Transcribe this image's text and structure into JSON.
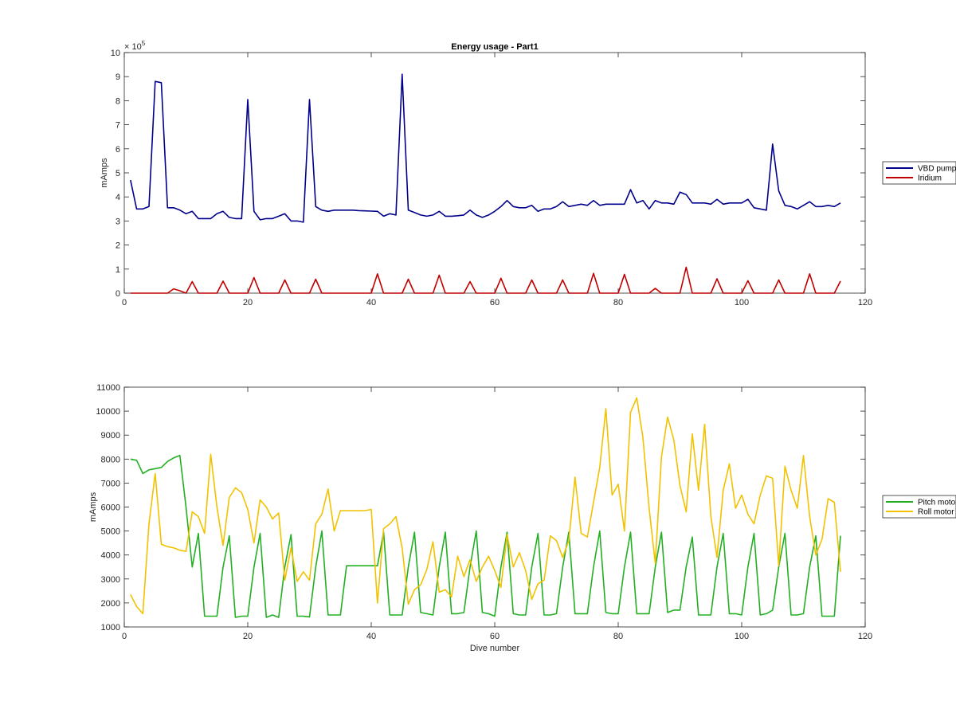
{
  "chart_data": [
    {
      "type": "line",
      "title": "Energy usage - Part1",
      "xlabel": "",
      "ylabel": "mAmps",
      "xlim": [
        0,
        120
      ],
      "ylim": [
        0,
        1000000
      ],
      "xticks": [
        0,
        20,
        40,
        60,
        80,
        100,
        120
      ],
      "yticks": [
        0,
        100000,
        200000,
        300000,
        400000,
        500000,
        600000,
        700000,
        800000,
        900000,
        1000000
      ],
      "ytick_labels": [
        "0",
        "1",
        "2",
        "3",
        "4",
        "5",
        "6",
        "7",
        "8",
        "9",
        "10"
      ],
      "exponent_label": "× 10",
      "exponent_power": "5",
      "grid": false,
      "legend_position": "outside-right",
      "x": [
        1,
        2,
        3,
        4,
        5,
        6,
        7,
        8,
        9,
        10,
        11,
        12,
        13,
        14,
        15,
        16,
        17,
        18,
        19,
        20,
        21,
        22,
        23,
        24,
        25,
        26,
        27,
        28,
        29,
        30,
        31,
        32,
        33,
        34,
        35,
        36,
        37,
        38,
        39,
        40,
        41,
        42,
        43,
        44,
        45,
        46,
        47,
        48,
        49,
        50,
        51,
        52,
        53,
        54,
        55,
        56,
        57,
        58,
        59,
        60,
        61,
        62,
        63,
        64,
        65,
        66,
        67,
        68,
        69,
        70,
        71,
        72,
        73,
        74,
        75,
        76,
        77,
        78,
        79,
        80,
        81,
        82,
        83,
        84,
        85,
        86,
        87,
        88,
        89,
        90,
        91,
        92,
        93,
        94,
        95,
        96,
        97,
        98,
        99,
        100,
        101,
        102,
        103,
        104,
        105,
        106,
        107,
        108,
        109,
        110,
        111,
        112,
        113,
        114,
        115,
        116
      ],
      "series": [
        {
          "name": "VBD pump",
          "color": "#00008b",
          "values": [
            470000,
            350000,
            350000,
            360000,
            880000,
            875000,
            355000,
            355000,
            345000,
            330000,
            340000,
            310000,
            310000,
            310000,
            330000,
            340000,
            315000,
            310000,
            310000,
            805000,
            340000,
            305000,
            310000,
            310000,
            320000,
            330000,
            300000,
            300000,
            295000,
            805000,
            360000,
            345000,
            340000,
            345000,
            345000,
            345000,
            345000,
            343000,
            342000,
            341000,
            340000,
            320000,
            330000,
            325000,
            910000,
            345000,
            335000,
            325000,
            320000,
            325000,
            340000,
            320000,
            320000,
            322000,
            325000,
            345000,
            325000,
            315000,
            325000,
            340000,
            360000,
            385000,
            360000,
            355000,
            355000,
            365000,
            340000,
            350000,
            350000,
            360000,
            380000,
            360000,
            365000,
            370000,
            365000,
            385000,
            365000,
            370000,
            370000,
            370000,
            370000,
            430000,
            375000,
            385000,
            350000,
            385000,
            375000,
            375000,
            370000,
            420000,
            410000,
            375000,
            375000,
            375000,
            370000,
            390000,
            370000,
            375000,
            375000,
            375000,
            390000,
            355000,
            350000,
            345000,
            620000,
            425000,
            365000,
            360000,
            350000,
            365000,
            380000,
            360000,
            360000,
            365000,
            360000,
            375000
          ]
        },
        {
          "name": "Iridium",
          "color": "#c00000",
          "values": [
            0,
            0,
            0,
            0,
            0,
            0,
            0,
            18000,
            10000,
            0,
            48000,
            0,
            0,
            0,
            0,
            50000,
            0,
            0,
            0,
            0,
            65000,
            0,
            0,
            0,
            0,
            55000,
            0,
            0,
            0,
            0,
            58000,
            0,
            0,
            0,
            0,
            0,
            0,
            0,
            0,
            0,
            80000,
            0,
            0,
            0,
            0,
            58000,
            0,
            0,
            0,
            0,
            75000,
            0,
            0,
            0,
            0,
            48000,
            0,
            0,
            0,
            0,
            62000,
            0,
            0,
            0,
            0,
            55000,
            0,
            0,
            0,
            0,
            55000,
            0,
            0,
            0,
            0,
            82000,
            0,
            0,
            0,
            0,
            78000,
            0,
            0,
            0,
            0,
            20000,
            0,
            0,
            0,
            0,
            108000,
            0,
            0,
            0,
            0,
            60000,
            0,
            0,
            0,
            0,
            52000,
            0,
            0,
            0,
            0,
            55000,
            0,
            0,
            0,
            0,
            80000,
            0,
            0,
            0,
            0,
            50000
          ]
        }
      ]
    },
    {
      "type": "line",
      "title": "",
      "xlabel": "Dive number",
      "ylabel": "mAmps",
      "xlim": [
        0,
        120
      ],
      "ylim": [
        1000,
        11000
      ],
      "xticks": [
        0,
        20,
        40,
        60,
        80,
        100,
        120
      ],
      "yticks": [
        1000,
        2000,
        3000,
        4000,
        5000,
        6000,
        7000,
        8000,
        9000,
        10000,
        11000
      ],
      "ytick_labels": [
        "1000",
        "2000",
        "3000",
        "4000",
        "5000",
        "6000",
        "7000",
        "8000",
        "9000",
        "10000",
        "11000"
      ],
      "grid": false,
      "legend_position": "outside-right",
      "x": [
        1,
        2,
        3,
        4,
        5,
        6,
        7,
        8,
        9,
        10,
        11,
        12,
        13,
        14,
        15,
        16,
        17,
        18,
        19,
        20,
        21,
        22,
        23,
        24,
        25,
        26,
        27,
        28,
        29,
        30,
        31,
        32,
        33,
        34,
        35,
        36,
        37,
        38,
        39,
        40,
        41,
        42,
        43,
        44,
        45,
        46,
        47,
        48,
        49,
        50,
        51,
        52,
        53,
        54,
        55,
        56,
        57,
        58,
        59,
        60,
        61,
        62,
        63,
        64,
        65,
        66,
        67,
        68,
        69,
        70,
        71,
        72,
        73,
        74,
        75,
        76,
        77,
        78,
        79,
        80,
        81,
        82,
        83,
        84,
        85,
        86,
        87,
        88,
        89,
        90,
        91,
        92,
        93,
        94,
        95,
        96,
        97,
        98,
        99,
        100,
        101,
        102,
        103,
        104,
        105,
        106,
        107,
        108,
        109,
        110,
        111,
        112,
        113,
        114,
        115,
        116
      ],
      "series": [
        {
          "name": "Pitch motor",
          "color": "#22b022",
          "values": [
            8000,
            7950,
            7400,
            7550,
            7600,
            7650,
            7900,
            8050,
            8150,
            6000,
            3500,
            4900,
            1450,
            1450,
            1450,
            3500,
            4800,
            1400,
            1450,
            1450,
            3500,
            4900,
            1400,
            1500,
            1400,
            3500,
            4850,
            1450,
            1450,
            1420,
            3500,
            5000,
            1500,
            1500,
            1500,
            3550,
            3550,
            3550,
            3550,
            3550,
            3550,
            4950,
            1500,
            1500,
            1500,
            3500,
            4950,
            1600,
            1550,
            1500,
            3500,
            4950,
            1550,
            1550,
            1600,
            3500,
            5000,
            1600,
            1550,
            1450,
            3500,
            4950,
            1550,
            1500,
            1500,
            3500,
            4900,
            1500,
            1500,
            1550,
            3500,
            4950,
            1550,
            1550,
            1550,
            3500,
            5000,
            1600,
            1550,
            1550,
            3500,
            4950,
            1550,
            1550,
            1550,
            3500,
            4950,
            1600,
            1700,
            1700,
            3500,
            4750,
            1500,
            1500,
            1500,
            3500,
            4900,
            1550,
            1550,
            1500,
            3500,
            4900,
            1500,
            1550,
            1700,
            3500,
            4900,
            1500,
            1500,
            1550,
            3500,
            4800,
            1450,
            1450,
            1450,
            4800
          ]
        },
        {
          "name": "Roll motor",
          "color": "#f2c200",
          "values": [
            2350,
            1850,
            1550,
            5300,
            7400,
            4450,
            4350,
            4300,
            4200,
            4150,
            5800,
            5600,
            4900,
            8200,
            6000,
            4400,
            6400,
            6800,
            6600,
            5900,
            4500,
            6300,
            6000,
            5500,
            5750,
            2950,
            4300,
            2900,
            3300,
            2950,
            5300,
            5700,
            6750,
            5000,
            5850,
            5850,
            5850,
            5850,
            5850,
            5900,
            2000,
            5100,
            5300,
            5600,
            4300,
            1950,
            2550,
            2750,
            3400,
            4550,
            2450,
            2550,
            2250,
            3950,
            3100,
            3800,
            2900,
            3500,
            3950,
            3350,
            2650,
            4850,
            3500,
            4100,
            3350,
            2150,
            2800,
            2950,
            4800,
            4600,
            3900,
            4600,
            7250,
            4900,
            4750,
            6200,
            7650,
            10100,
            6500,
            6950,
            5000,
            9950,
            10550,
            8900,
            5950,
            3650,
            8100,
            9750,
            8800,
            6900,
            5800,
            9050,
            6700,
            9450,
            5600,
            3900,
            6700,
            7800,
            5950,
            6500,
            5700,
            5300,
            6500,
            7300,
            7200,
            3550,
            7700,
            6700,
            5950,
            8150,
            5600,
            4000,
            4650,
            6350,
            6200,
            3300
          ]
        }
      ]
    }
  ]
}
